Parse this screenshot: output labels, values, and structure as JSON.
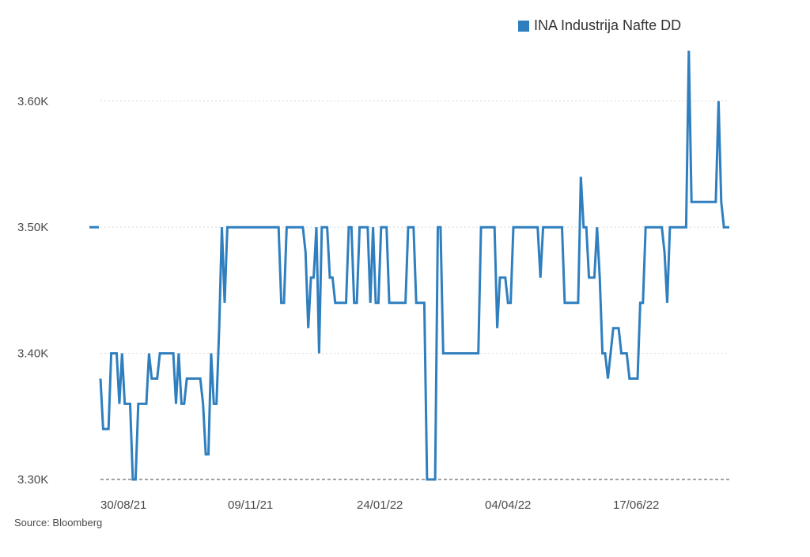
{
  "legend": {
    "label": "INA Industrija Nafte DD"
  },
  "source": "Source: Bloomberg",
  "colors": {
    "series": "#2f7fbf",
    "grid": "#d9d9d9",
    "baseline": "#444444",
    "text": "#4a4a4a"
  },
  "chart_data": {
    "type": "line",
    "title": "",
    "xlabel": "",
    "ylabel": "",
    "ylim": [
      3300,
      3640
    ],
    "y_ticks": [
      {
        "value": 3300,
        "label": "3.30K"
      },
      {
        "value": 3400,
        "label": "3.40K"
      },
      {
        "value": 3500,
        "label": "3.50K"
      },
      {
        "value": 3600,
        "label": "3.60K"
      }
    ],
    "x_ticks": [
      "30/08/21",
      "09/11/21",
      "24/01/22",
      "04/04/22",
      "17/06/22"
    ],
    "grid": "horizontal dotted",
    "legend_position": "top-right",
    "series": [
      {
        "name": "INA Industrija Nafte DD",
        "values": [
          3380,
          3340,
          3340,
          3340,
          3400,
          3400,
          3400,
          3360,
          3400,
          3360,
          3360,
          3360,
          3300,
          3300,
          3360,
          3360,
          3360,
          3360,
          3400,
          3380,
          3380,
          3380,
          3400,
          3400,
          3400,
          3400,
          3400,
          3400,
          3360,
          3400,
          3360,
          3360,
          3380,
          3380,
          3380,
          3380,
          3380,
          3380,
          3360,
          3320,
          3320,
          3400,
          3360,
          3360,
          3420,
          3500,
          3440,
          3500,
          3500,
          3500,
          3500,
          3500,
          3500,
          3500,
          3500,
          3500,
          3500,
          3500,
          3500,
          3500,
          3500,
          3500,
          3500,
          3500,
          3500,
          3500,
          3500,
          3440,
          3440,
          3500,
          3500,
          3500,
          3500,
          3500,
          3500,
          3500,
          3480,
          3420,
          3460,
          3460,
          3500,
          3400,
          3500,
          3500,
          3500,
          3460,
          3460,
          3440,
          3440,
          3440,
          3440,
          3440,
          3500,
          3500,
          3440,
          3440,
          3500,
          3500,
          3500,
          3500,
          3440,
          3500,
          3440,
          3440,
          3500,
          3500,
          3500,
          3440,
          3440,
          3440,
          3440,
          3440,
          3440,
          3440,
          3500,
          3500,
          3500,
          3440,
          3440,
          3440,
          3440,
          3300,
          3300,
          3300,
          3300,
          3500,
          3500,
          3400,
          3400,
          3400,
          3400,
          3400,
          3400,
          3400,
          3400,
          3400,
          3400,
          3400,
          3400,
          3400,
          3400,
          3500,
          3500,
          3500,
          3500,
          3500,
          3500,
          3420,
          3460,
          3460,
          3460,
          3440,
          3440,
          3500,
          3500,
          3500,
          3500,
          3500,
          3500,
          3500,
          3500,
          3500,
          3500,
          3460,
          3500,
          3500,
          3500,
          3500,
          3500,
          3500,
          3500,
          3500,
          3440,
          3440,
          3440,
          3440,
          3440,
          3440,
          3540,
          3500,
          3500,
          3460,
          3460,
          3460,
          3500,
          3460,
          3400,
          3400,
          3380,
          3400,
          3420,
          3420,
          3420,
          3400,
          3400,
          3400,
          3380,
          3380,
          3380,
          3380,
          3440,
          3440,
          3500,
          3500,
          3500,
          3500,
          3500,
          3500,
          3500,
          3480,
          3440,
          3500,
          3500,
          3500,
          3500,
          3500,
          3500,
          3500,
          3640,
          3520,
          3520,
          3520,
          3520,
          3520,
          3520,
          3520,
          3520,
          3520,
          3520,
          3600,
          3520,
          3500,
          3500,
          3500
        ]
      }
    ]
  }
}
